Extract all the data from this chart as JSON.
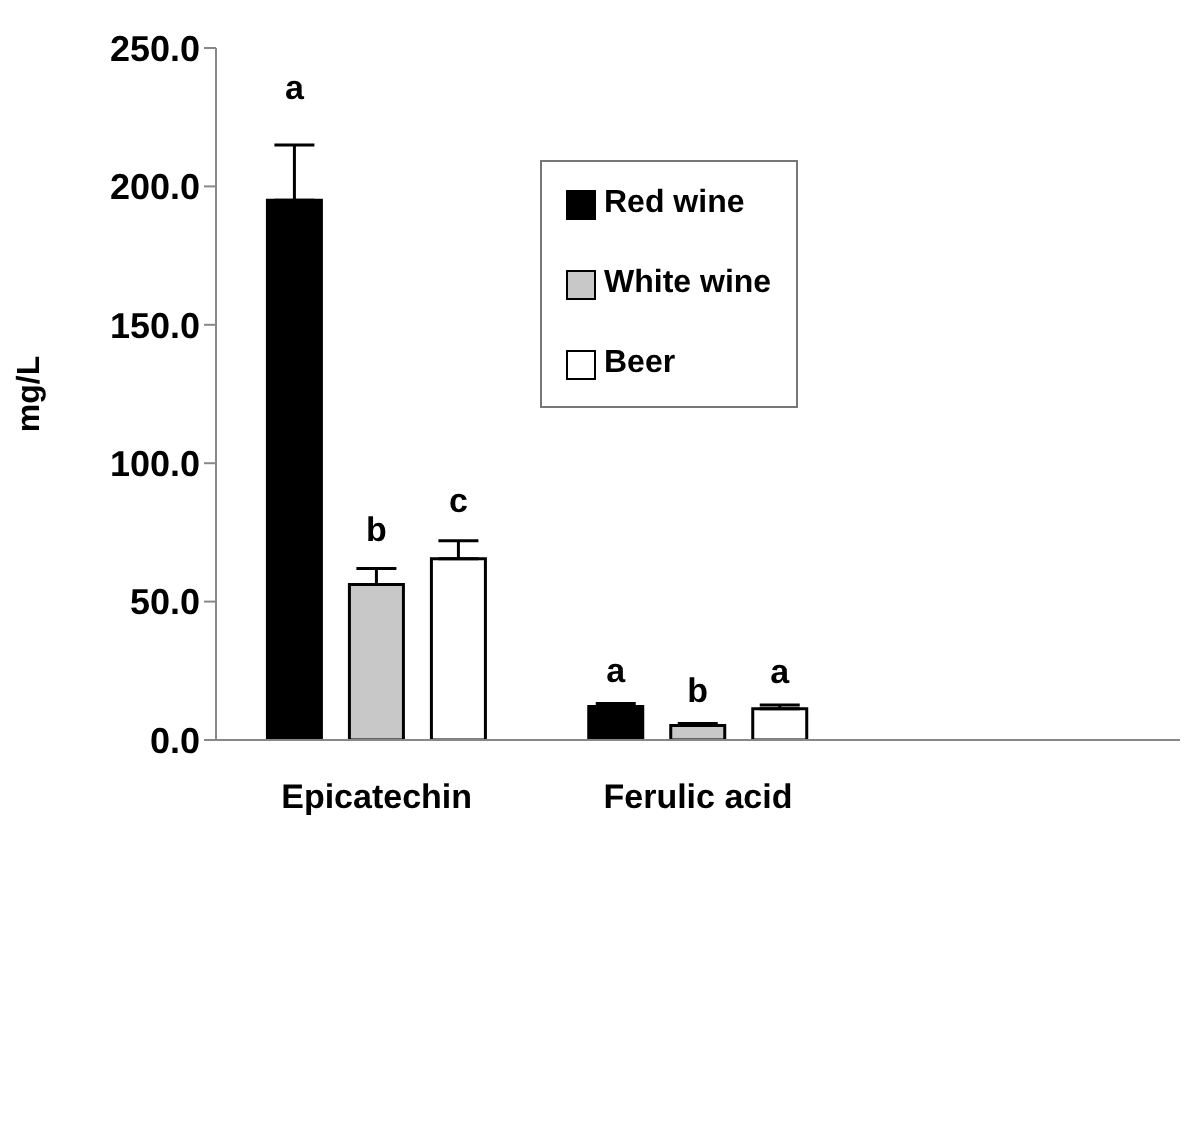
{
  "chart_data": {
    "type": "bar",
    "ylabel": "mg/L",
    "categories": [
      "Epicatechin",
      "Ferulic acid",
      null
    ],
    "series": [
      {
        "name": "Red wine",
        "color": "#000000",
        "values": [
          195,
          12.1,
          null
        ],
        "errors": [
          [
            195,
            215
          ],
          [
            12.1,
            13.2
          ],
          null
        ],
        "value_labels": [
          "a",
          "a",
          null
        ]
      },
      {
        "name": "White wine",
        "color": "#c8c8c8",
        "values": [
          56.2,
          5.2,
          null
        ],
        "errors": [
          [
            56.2,
            62
          ],
          [
            5.2,
            6
          ],
          null
        ],
        "value_labels": [
          "b",
          "b",
          null
        ]
      },
      {
        "name": "Beer",
        "color": "#ffffff",
        "values": [
          65.5,
          11.3,
          null
        ],
        "errors": [
          [
            65.5,
            72
          ],
          [
            11.3,
            12.6
          ],
          null
        ],
        "value_labels": [
          "c",
          "a",
          null
        ]
      }
    ],
    "ylim": [
      0,
      250
    ],
    "yticks": [
      {
        "value": 0,
        "label": "0.0"
      },
      {
        "value": 50,
        "label": "50.0"
      },
      {
        "value": 100,
        "label": "100.0"
      },
      {
        "value": 150,
        "label": "150.0"
      },
      {
        "value": 200,
        "label": "200.0"
      },
      {
        "value": 250,
        "label": "250.0"
      }
    ],
    "grid": false,
    "legend": "top"
  }
}
